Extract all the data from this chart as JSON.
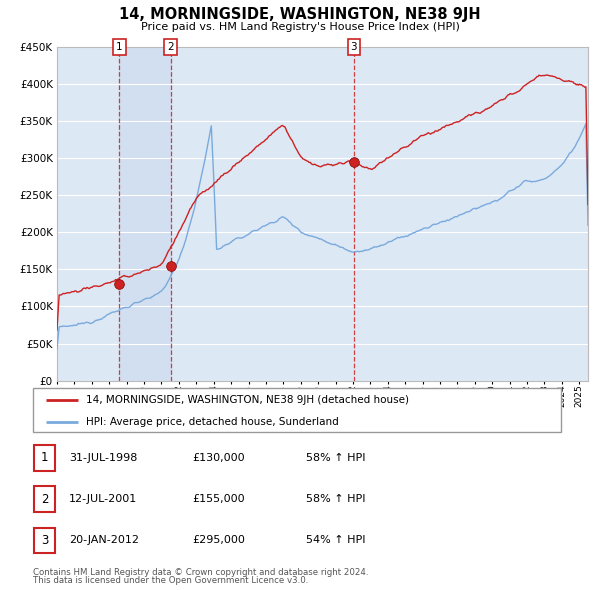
{
  "title": "14, MORNINGSIDE, WASHINGTON, NE38 9JH",
  "subtitle": "Price paid vs. HM Land Registry's House Price Index (HPI)",
  "legend_line1": "14, MORNINGSIDE, WASHINGTON, NE38 9JH (detached house)",
  "legend_line2": "HPI: Average price, detached house, Sunderland",
  "footer1": "Contains HM Land Registry data © Crown copyright and database right 2024.",
  "footer2": "This data is licensed under the Open Government Licence v3.0.",
  "sale_color": "#cc2222",
  "hpi_color": "#7aaadd",
  "vline_color": "#cc2222",
  "bg_color": "#dde8f5",
  "ylim": [
    0,
    450000
  ],
  "yticks": [
    0,
    50000,
    100000,
    150000,
    200000,
    250000,
    300000,
    350000,
    400000,
    450000
  ],
  "sales": [
    {
      "date_num": 1998.58,
      "price": 130000,
      "label": "1"
    },
    {
      "date_num": 2001.53,
      "price": 155000,
      "label": "2"
    },
    {
      "date_num": 2012.05,
      "price": 295000,
      "label": "3"
    }
  ],
  "table_rows": [
    {
      "num": "1",
      "date": "31-JUL-1998",
      "price": "£130,000",
      "pct": "58% ↑ HPI"
    },
    {
      "num": "2",
      "date": "12-JUL-2001",
      "price": "£155,000",
      "pct": "58% ↑ HPI"
    },
    {
      "num": "3",
      "date": "20-JAN-2012",
      "price": "£295,000",
      "pct": "54% ↑ HPI"
    }
  ],
  "xmin": 1995.0,
  "xmax": 2025.5
}
